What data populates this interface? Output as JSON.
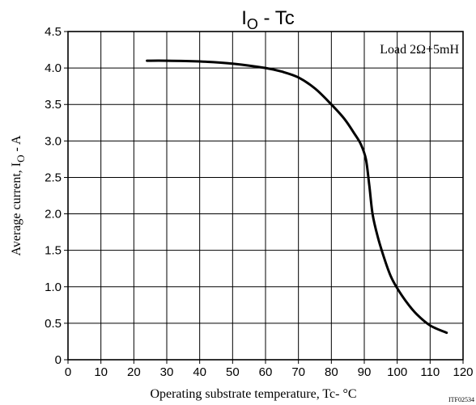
{
  "chart_data": {
    "type": "line",
    "title": {
      "main": "I",
      "sub": "O",
      "rest": " - Tc"
    },
    "xlabel": "Operating substrate temperature, Tc- °C",
    "ylabel": {
      "main": "Average current, I",
      "sub": "O",
      "rest": " - A"
    },
    "xlim": [
      0,
      120
    ],
    "ylim": [
      0,
      4.5
    ],
    "x_ticks": [
      0,
      10,
      20,
      30,
      40,
      50,
      60,
      70,
      80,
      90,
      100,
      110,
      120
    ],
    "y_ticks": [
      0,
      0.5,
      1.0,
      1.5,
      2.0,
      2.5,
      3.0,
      3.5,
      4.0,
      4.5
    ],
    "x_tick_labels": [
      "0",
      "10",
      "20",
      "30",
      "40",
      "50",
      "60",
      "70",
      "80",
      "90",
      "100",
      "110",
      "120"
    ],
    "y_tick_labels": [
      "0",
      "0.5",
      "1.0",
      "1.5",
      "2.0",
      "2.5",
      "3.0",
      "3.5",
      "4.0",
      "4.5"
    ],
    "grid": true,
    "annotation": "Load 2Ω+5mH",
    "footer_code": "ITF02534",
    "series": [
      {
        "x": [
          24,
          30,
          40,
          50,
          60,
          65,
          70,
          75,
          80,
          84,
          87,
          89,
          90.5,
          91.5,
          92.5,
          94,
          96,
          98,
          100,
          103,
          106,
          110,
          115
        ],
        "y": [
          4.1,
          4.1,
          4.09,
          4.06,
          4.0,
          3.95,
          3.87,
          3.72,
          3.5,
          3.3,
          3.1,
          2.95,
          2.75,
          2.4,
          2.0,
          1.7,
          1.4,
          1.15,
          0.98,
          0.78,
          0.62,
          0.47,
          0.37
        ]
      }
    ]
  }
}
